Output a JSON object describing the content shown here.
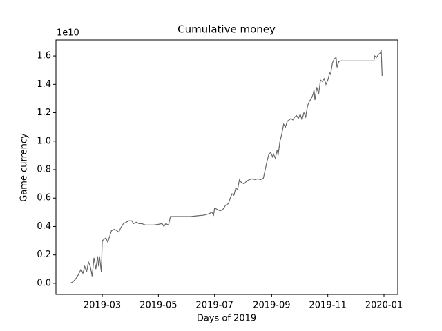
{
  "chart_data": {
    "type": "line",
    "title": "Cumulative money",
    "x_label": "Days of 2019",
    "y_label": "Game currency",
    "y_offset_label": "1e10",
    "xlim": [
      8.7,
      380
    ],
    "xticks": [
      {
        "value": 59,
        "label": "2019-03"
      },
      {
        "value": 120,
        "label": "2019-05"
      },
      {
        "value": 181,
        "label": "2019-07"
      },
      {
        "value": 243,
        "label": "2019-09"
      },
      {
        "value": 304,
        "label": "2019-11"
      },
      {
        "value": 365,
        "label": "2020-01"
      }
    ],
    "ylim": [
      -0.078,
      1.712
    ],
    "yticks": [
      {
        "value": 0,
        "label": "0.0"
      },
      {
        "value": 0.2,
        "label": "0.2"
      },
      {
        "value": 0.4,
        "label": "0.4"
      },
      {
        "value": 0.6,
        "label": "0.6"
      },
      {
        "value": 0.8,
        "label": "0.8"
      },
      {
        "value": 1,
        "label": "1.0"
      },
      {
        "value": 1.2,
        "label": "1.2"
      },
      {
        "value": 1.4,
        "label": "1.4"
      },
      {
        "value": 1.6,
        "label": "1.6"
      }
    ],
    "grid": false,
    "x": [
      24,
      27,
      30,
      33,
      36,
      38,
      40,
      42,
      44,
      46,
      48,
      50,
      52,
      54,
      55,
      56,
      58,
      59,
      61,
      63,
      65,
      67,
      69,
      72,
      75,
      77,
      79,
      82,
      85,
      88,
      91,
      93,
      96,
      99,
      102,
      106,
      110,
      115,
      120,
      124,
      126,
      128,
      131,
      133,
      135,
      145,
      155,
      162,
      170,
      175,
      178,
      180,
      181,
      184,
      187,
      190,
      193,
      196,
      198,
      200,
      202,
      204,
      206,
      208,
      210,
      213,
      216,
      219,
      222,
      225,
      228,
      231,
      234,
      236,
      238,
      240,
      242,
      244,
      245,
      247,
      249,
      250,
      252,
      254,
      256,
      258,
      260,
      262,
      264,
      266,
      268,
      270,
      272,
      274,
      276,
      278,
      280,
      282,
      284,
      286,
      288,
      289,
      290,
      292,
      294,
      296,
      298,
      300,
      302,
      304,
      306,
      307,
      309,
      311,
      313,
      314,
      316,
      318,
      325,
      335,
      345,
      354,
      355,
      357,
      359,
      361,
      362,
      363
    ],
    "series": [
      {
        "color": "#666666",
        "values": [
          0.0,
          0.01,
          0.03,
          0.06,
          0.1,
          0.07,
          0.12,
          0.08,
          0.15,
          0.12,
          0.05,
          0.18,
          0.1,
          0.19,
          0.12,
          0.19,
          0.08,
          0.3,
          0.31,
          0.32,
          0.29,
          0.33,
          0.37,
          0.38,
          0.37,
          0.36,
          0.39,
          0.42,
          0.43,
          0.44,
          0.44,
          0.42,
          0.43,
          0.42,
          0.42,
          0.41,
          0.41,
          0.41,
          0.415,
          0.42,
          0.4,
          0.42,
          0.41,
          0.47,
          0.47,
          0.47,
          0.47,
          0.475,
          0.48,
          0.49,
          0.5,
          0.48,
          0.53,
          0.52,
          0.51,
          0.52,
          0.55,
          0.56,
          0.6,
          0.63,
          0.62,
          0.67,
          0.66,
          0.73,
          0.71,
          0.7,
          0.72,
          0.73,
          0.735,
          0.73,
          0.735,
          0.73,
          0.74,
          0.8,
          0.86,
          0.91,
          0.92,
          0.89,
          0.91,
          0.88,
          0.94,
          0.9,
          1.0,
          1.05,
          1.12,
          1.1,
          1.14,
          1.15,
          1.16,
          1.15,
          1.17,
          1.18,
          1.16,
          1.19,
          1.15,
          1.2,
          1.17,
          1.25,
          1.28,
          1.3,
          1.33,
          1.36,
          1.29,
          1.38,
          1.33,
          1.43,
          1.42,
          1.44,
          1.4,
          1.43,
          1.48,
          1.47,
          1.55,
          1.58,
          1.59,
          1.52,
          1.56,
          1.565,
          1.565,
          1.565,
          1.565,
          1.565,
          1.6,
          1.59,
          1.61,
          1.62,
          1.64,
          1.46
        ]
      }
    ]
  }
}
